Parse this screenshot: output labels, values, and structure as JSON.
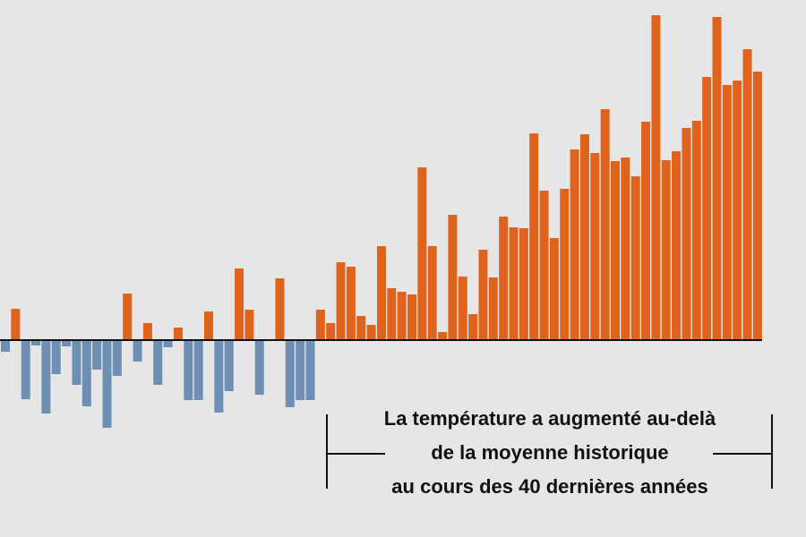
{
  "caption": {
    "line1": "La température a augmenté au-delà",
    "line2": "de la moyenne historique",
    "line3": "au cours des 40 dernières années"
  },
  "colors": {
    "background": "#e6e6e6",
    "above_average": "#e0631d",
    "below_average": "#6e8fb4",
    "baseline": "#111111",
    "text": "#111111"
  },
  "chart_data": {
    "type": "bar",
    "title": "",
    "xlabel": "",
    "ylabel": "",
    "ylim": [
      -1.0,
      3.6
    ],
    "grid": false,
    "legend": "none",
    "values": [
      -0.13,
      0.35,
      -0.66,
      -0.06,
      -0.82,
      -0.38,
      -0.07,
      -0.5,
      -0.74,
      -0.33,
      -0.98,
      -0.4,
      0.52,
      -0.24,
      0.19,
      -0.5,
      -0.08,
      0.14,
      -0.67,
      -0.67,
      0.32,
      -0.81,
      -0.57,
      0.8,
      0.34,
      -0.61,
      0.0,
      0.69,
      -0.75,
      -0.67,
      -0.67,
      0.34,
      0.19,
      0.87,
      0.82,
      0.27,
      0.17,
      1.05,
      0.58,
      0.54,
      0.51,
      1.93,
      1.05,
      0.09,
      1.4,
      0.71,
      0.29,
      1.01,
      0.7,
      1.38,
      1.26,
      1.25,
      2.31,
      1.67,
      1.14,
      1.69,
      2.13,
      2.3,
      2.09,
      2.58,
      2.0,
      2.04,
      1.83,
      2.44,
      3.63,
      2.01,
      2.11,
      2.37,
      2.45,
      2.94,
      3.61,
      2.85,
      2.9,
      3.25,
      3.0
    ]
  }
}
